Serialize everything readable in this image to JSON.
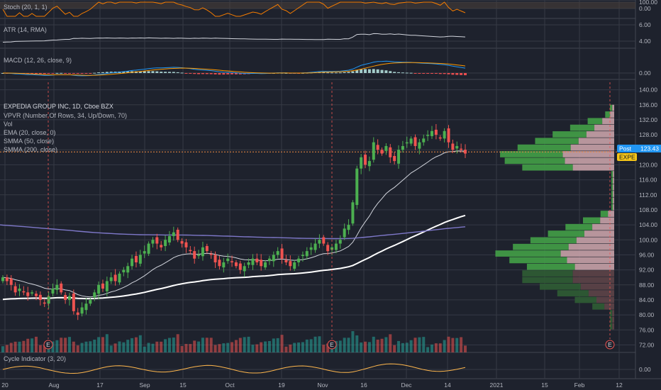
{
  "chart_data": {
    "type": "candlestick",
    "title": "EXPEDIA GROUP INC, 1D, Cboe BZX",
    "ticker": "EXPE",
    "overlays": [
      "VPVR (Number Of Rows, 34, Up/Down, 70)",
      "Vol",
      "EMA (20, close, 0)",
      "SMMA (50, close)",
      "SMMA (200, close)"
    ],
    "colors": {
      "up": "#4caf50",
      "down": "#ef5350",
      "ema": "#d1d4dc",
      "smma50": "#ffffff",
      "smma200": "#7e78c9",
      "price_line": "#ef8a44",
      "post_badge": "#2196f3",
      "ticker_badge": "#f5c518"
    },
    "price_axis": {
      "ticks": [
        "140.00",
        "136.00",
        "132.00",
        "128.00",
        "124.00",
        "120.00",
        "116.00",
        "112.00",
        "108.00",
        "104.00",
        "100.00",
        "96.00",
        "92.00",
        "88.00",
        "84.00",
        "80.00",
        "76.00",
        "72.00"
      ],
      "range": [
        70,
        142
      ]
    },
    "price_badges": {
      "post": {
        "label": "Post",
        "value": "123.43"
      },
      "ticker": "EXPE"
    },
    "x_axis": {
      "labels": [
        "20",
        "Aug",
        "17",
        "Sep",
        "15",
        "Oct",
        "19",
        "Nov",
        "16",
        "Dec",
        "14",
        "2021",
        "15",
        "Feb",
        "12"
      ]
    },
    "earnings_marker": "E",
    "candles_close": [
      90,
      89,
      88,
      86,
      87,
      86,
      85,
      86,
      85,
      84,
      83,
      85,
      87,
      88,
      86,
      84,
      85,
      81,
      80,
      82,
      83,
      84,
      86,
      88,
      87,
      89,
      90,
      89,
      91,
      92,
      93,
      95,
      94,
      96,
      97,
      99,
      100,
      99,
      98,
      100,
      101,
      102,
      100,
      99,
      98,
      97,
      95,
      96,
      98,
      97,
      96,
      94,
      93,
      94,
      95,
      94,
      93,
      92,
      93,
      94,
      95,
      94,
      93,
      94,
      95,
      96,
      97,
      95,
      94,
      93,
      94,
      95,
      96,
      97,
      98,
      99,
      100,
      99,
      97,
      98,
      99,
      100,
      103,
      104,
      110,
      119,
      122,
      120,
      121,
      126,
      124,
      123,
      125,
      122,
      121,
      124,
      125,
      126,
      127,
      125,
      126,
      127,
      128,
      129,
      128,
      127,
      129,
      126,
      124,
      125,
      124,
      123
    ],
    "panes": [
      {
        "name": "Stoch (20, 1, 1)",
        "ticks": [
          "100.00",
          "0.00"
        ]
      },
      {
        "name": "ATR (14, RMA)",
        "ticks": [
          "6.00",
          "4.00"
        ]
      },
      {
        "name": "MACD (12, 26, close, 9)",
        "ticks": [
          "0.00"
        ]
      },
      {
        "name": "Cycle Indicator (3, 20)",
        "ticks": [
          "0.00"
        ]
      }
    ]
  }
}
